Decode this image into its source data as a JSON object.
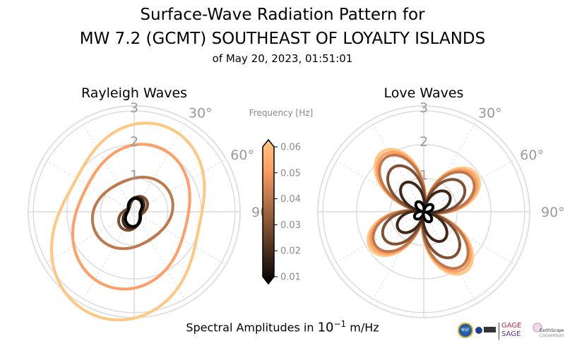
{
  "title": {
    "line1": "Surface-Wave Radiation Pattern for",
    "line2": "MW 7.2 (GCMT) SOUTHEAST OF LOYALTY ISLANDS",
    "line3": "of May 20, 2023, 01:51:01"
  },
  "footer": {
    "text": "Spectral Amplitudes in ",
    "base": "10",
    "exp": "−1",
    "unit": " m/Hz"
  },
  "logos": {
    "nsf": "NSF",
    "gage": "GAGE",
    "sage": "SAGE",
    "earthscope": "EarthScope",
    "consortium": "Consortium"
  },
  "chart_data": [
    {
      "type": "polar-line",
      "title": "Rayleigh Waves",
      "r_ticks": [
        "1",
        "2",
        "3"
      ],
      "r_max": 3.15,
      "theta_labels": [
        "30°",
        "60°",
        "90°"
      ],
      "theta_zero": "north",
      "theta_direction": "clockwise",
      "series": [
        {
          "frequency": 0.06,
          "model": "A + B·cos(θ−φ1) + C·cos(2(θ−φ2))",
          "A": 2.5,
          "B": 0.3,
          "phi1": 200,
          "C": 0.5,
          "phi2": 20
        },
        {
          "frequency": 0.05,
          "A": 1.9,
          "B": 0.15,
          "phi1": 200,
          "C": 0.3,
          "phi2": 20
        },
        {
          "frequency": 0.04,
          "A": 1.1,
          "B": 0.05,
          "phi1": 240,
          "C": 0.15,
          "phi2": 60
        },
        {
          "frequency": 0.03,
          "A": 0.38,
          "B": 0.05,
          "phi1": 200,
          "C": 0.18,
          "phi2": 35
        },
        {
          "frequency": 0.02,
          "A": 0.33,
          "B": 0.03,
          "phi1": 200,
          "C": 0.15,
          "phi2": 20
        },
        {
          "frequency": 0.01,
          "A": 0.3,
          "B": 0.02,
          "phi1": 200,
          "C": 0.12,
          "phi2": 10
        }
      ]
    },
    {
      "type": "polar-line",
      "title": "Love Waves",
      "r_ticks": [
        "1",
        "2",
        "3"
      ],
      "r_max": 3.15,
      "theta_labels": [
        "30°",
        "60°",
        "90°"
      ],
      "theta_zero": "north",
      "theta_direction": "clockwise",
      "series": [
        {
          "frequency": 0.06,
          "model": "peak·|cos(2(θ−φ))|·(1−w·cos²(θ−φ)) + floor",
          "peak": 2.05,
          "phi": 55,
          "w": 0.12,
          "floor": 0.12
        },
        {
          "frequency": 0.05,
          "peak": 1.95,
          "phi": 55,
          "w": 0.12,
          "floor": 0.12
        },
        {
          "frequency": 0.04,
          "peak": 1.85,
          "phi": 55,
          "w": 0.12,
          "floor": 0.12
        },
        {
          "frequency": 0.03,
          "peak": 1.5,
          "phi": 55,
          "w": 0.12,
          "floor": 0.1
        },
        {
          "frequency": 0.02,
          "peak": 0.95,
          "phi": 55,
          "w": 0.12,
          "floor": 0.08
        },
        {
          "frequency": 0.01,
          "peak": 0.3,
          "phi": 55,
          "w": 0.1,
          "floor": 0.05
        }
      ]
    }
  ],
  "colorbar": {
    "label": "Frequency [Hz]",
    "colormap": "copper",
    "min": 0.01,
    "max": 0.06,
    "ticks": [
      "0.01",
      "0.02",
      "0.03",
      "0.04",
      "0.05",
      "0.06"
    ]
  }
}
